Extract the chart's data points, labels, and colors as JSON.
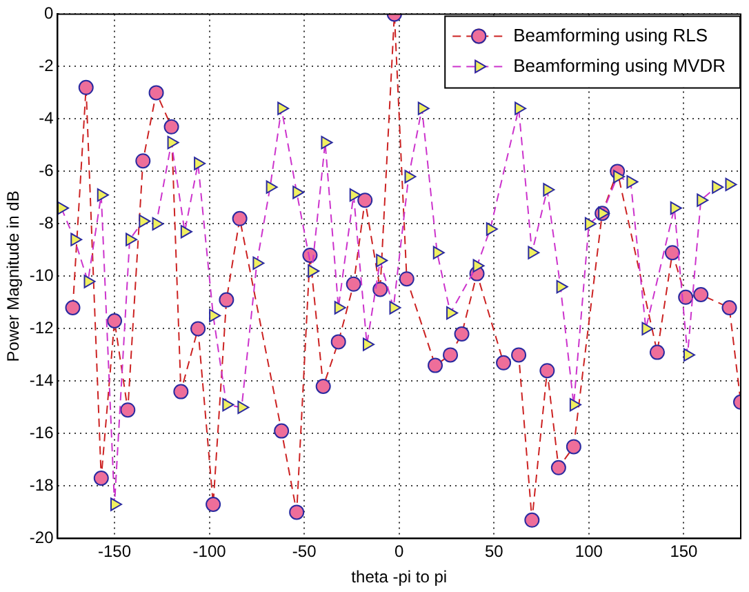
{
  "chart_data": {
    "type": "line",
    "xlabel": "theta -pi to pi",
    "ylabel": "Power Magnitude in dB",
    "xlim": [
      -180,
      180
    ],
    "ylim": [
      -20,
      0
    ],
    "xticks": [
      -150,
      -100,
      -50,
      0,
      50,
      100,
      150
    ],
    "yticks": [
      -20,
      -18,
      -16,
      -14,
      -12,
      -10,
      -8,
      -6,
      -4,
      -2,
      0
    ],
    "grid": true,
    "legend": "top right",
    "line_style": "dashed",
    "series": [
      {
        "name": "Beamforming using RLS",
        "color": "#cc2222",
        "marker": "circle",
        "x": [
          -172,
          -165,
          -157,
          -150,
          -143,
          -135,
          -128,
          -120,
          -115,
          -106,
          -98,
          -91,
          -84,
          -62,
          -54,
          -47,
          -40,
          -32,
          -24,
          -18,
          -10,
          -2.5,
          4,
          19,
          27,
          33,
          41,
          55,
          63,
          70,
          78,
          84,
          92,
          107,
          115,
          136,
          144,
          151,
          159,
          174,
          180
        ],
        "values": [
          -11.2,
          -2.8,
          -17.7,
          -11.7,
          -15.1,
          -5.6,
          -3.0,
          -4.3,
          -14.4,
          -12.0,
          -18.7,
          -10.9,
          -7.8,
          -15.9,
          -19.0,
          -9.2,
          -14.2,
          -12.5,
          -10.3,
          -7.1,
          -10.5,
          0,
          -10.1,
          -13.4,
          -13.0,
          -12.2,
          -9.9,
          -13.3,
          -13.0,
          -19.3,
          -13.6,
          -17.3,
          -16.5,
          -7.6,
          -6.0,
          -12.9,
          -9.1,
          -10.8,
          -10.7,
          -11.2,
          -14.8
        ]
      },
      {
        "name": "Beamforming using MVDR",
        "color": "#cc33cc",
        "marker": "triangle",
        "x": [
          -178,
          -171,
          -164,
          -157,
          -150,
          -142,
          -135,
          -128,
          -120,
          -113,
          -106,
          -98,
          -91,
          -83,
          -75,
          -68,
          -62,
          -54,
          -46,
          -39,
          -32,
          -24,
          -17,
          -10,
          -3,
          5,
          12,
          20,
          27,
          41,
          48,
          63,
          70,
          78,
          85,
          92,
          100,
          107,
          115,
          122,
          130,
          145,
          152,
          159,
          167,
          174
        ],
        "values": [
          -7.4,
          -8.6,
          -10.2,
          -6.9,
          -18.7,
          -8.6,
          -7.9,
          -8.0,
          -4.9,
          -8.3,
          -5.7,
          -11.5,
          -14.9,
          -15.0,
          -9.5,
          -6.6,
          -3.6,
          -6.8,
          -9.8,
          -4.9,
          -11.2,
          -6.9,
          -12.6,
          -9.4,
          -11.2,
          -6.2,
          -3.6,
          -9.1,
          -11.4,
          -9.6,
          -8.2,
          -3.6,
          -9.1,
          -6.7,
          -10.4,
          -14.9,
          -8.0,
          -7.6,
          -6.2,
          -6.4,
          -12.0,
          -7.4,
          -13.0,
          -7.1,
          -6.6,
          -6.5
        ]
      }
    ]
  }
}
